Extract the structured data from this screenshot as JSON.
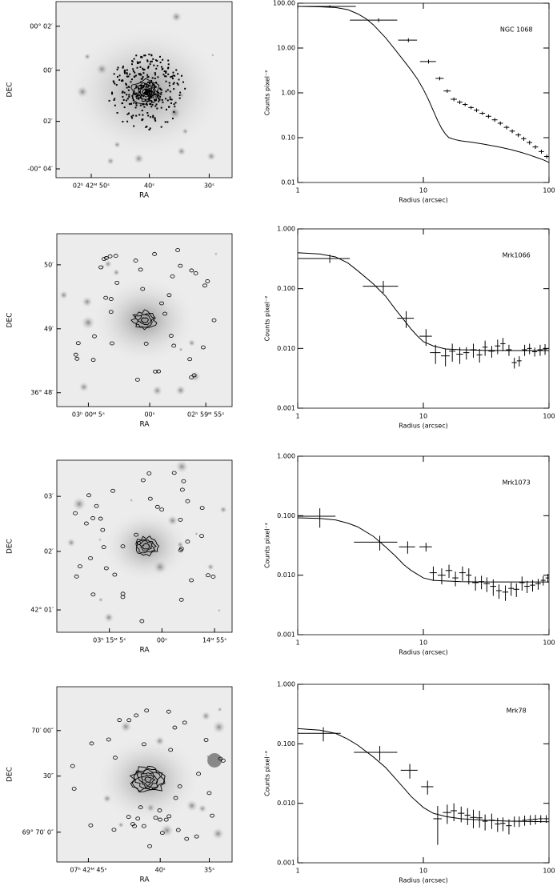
{
  "chart_data": [
    {
      "type": "image",
      "xlabel": "RA",
      "ylabel": "DEC",
      "xtick_labels": [
        "02ʰ 42ᴹ 50ˢ",
        "40ˢ",
        "30ˢ"
      ],
      "ytick_labels": [
        "00° 02′",
        "00′",
        "02′",
        "-00° 04′"
      ]
    },
    {
      "type": "errorbar",
      "annotation": "NGC 1068",
      "xlabel": "Radius (arcsec)",
      "ylabel": "Counts pixel⁻²",
      "xscale": "log",
      "yscale": "log",
      "xlim": [
        1,
        100
      ],
      "ylim": [
        0.01,
        100
      ],
      "xticks": [
        1,
        10,
        100
      ],
      "yticks": [
        0.01,
        {
          "value": 0.1,
          "label": "0.10"
        },
        {
          "value": 1,
          "label": "1.00"
        },
        {
          "value": 10,
          "label": "10.00"
        },
        {
          "value": 100,
          "label": "100.00"
        }
      ],
      "series": [
        {
          "color": "#000000",
          "x": [
            1.8,
            4.4,
            7.6,
            11,
            13.5,
            15.5,
            17.5,
            19.5,
            21.5,
            24,
            26.5,
            29.5,
            33,
            37,
            41,
            46,
            51,
            57,
            63,
            70,
            78,
            87,
            96
          ],
          "values": [
            85,
            42,
            15,
            5.0,
            2.1,
            1.1,
            0.72,
            0.62,
            0.55,
            0.47,
            0.41,
            0.35,
            0.3,
            0.25,
            0.21,
            0.17,
            0.14,
            0.115,
            0.095,
            0.078,
            0.062,
            0.049,
            0.038
          ],
          "xerr": [
            1.1,
            1.8,
            1.3,
            1.6,
            1,
            1,
            1,
            1,
            1,
            1.2,
            1.3,
            1.5,
            1.7,
            1.9,
            2,
            2.3,
            2.5,
            2.8,
            3,
            3.5,
            4,
            4.3,
            4.5
          ],
          "yerr": [
            5,
            4,
            1.5,
            0.5,
            0.2,
            0.1,
            0.07,
            0.06,
            0.05,
            0.04,
            0.04,
            0.03,
            0.03,
            0.025,
            0.02,
            0.017,
            0.014,
            0.012,
            0.01,
            0.008,
            0.006,
            0.005,
            0.004
          ]
        },
        {
          "color": "#000000",
          "x": [
            1,
            1.5,
            2,
            2.5,
            3,
            3.5,
            4,
            5,
            6,
            7,
            8,
            9,
            10,
            11,
            12,
            13,
            14,
            15,
            16,
            18,
            20,
            25,
            30,
            40,
            50,
            60,
            70,
            80,
            90,
            100
          ],
          "values": [
            85,
            83,
            80,
            72,
            58,
            45,
            33,
            17,
            9,
            5.2,
            3.2,
            2.0,
            1.2,
            0.7,
            0.4,
            0.24,
            0.16,
            0.12,
            0.1,
            0.09,
            0.085,
            0.078,
            0.072,
            0.062,
            0.054,
            0.047,
            0.041,
            0.036,
            0.032,
            0.028
          ]
        }
      ]
    },
    {
      "type": "image",
      "xlabel": "RA",
      "ylabel": "DEC",
      "xtick_labels": [
        "03ʰ 00ᴹ 5ˢ",
        "00ˢ",
        "02ʰ 59ᴹ 55ˢ"
      ],
      "ytick_labels": [
        "50′",
        "49′",
        "36° 48′"
      ]
    },
    {
      "type": "errorbar",
      "annotation": "Mrk1066",
      "xlabel": "Radius (arcsec)",
      "ylabel": "Counts pixel⁻²",
      "xscale": "log",
      "yscale": "log",
      "xlim": [
        1,
        100
      ],
      "ylim": [
        0.001,
        1
      ],
      "xticks": [
        1,
        10,
        100
      ],
      "yticks": [
        0.001,
        {
          "value": 0.01,
          "label": "0.010"
        },
        {
          "value": 0.1,
          "label": "0.100"
        },
        {
          "value": 1,
          "label": "1.000"
        }
      ],
      "series": [
        {
          "color": "#000000",
          "x": [
            1.8,
            4.8,
            7.3,
            10.5,
            12.5,
            15,
            17,
            19.5,
            22,
            25,
            28,
            31,
            35,
            39,
            43,
            48,
            53,
            58,
            64,
            70,
            77,
            85,
            93
          ],
          "values": [
            0.32,
            0.11,
            0.032,
            0.016,
            0.0085,
            0.0075,
            0.009,
            0.008,
            0.0085,
            0.0095,
            0.0078,
            0.0105,
            0.009,
            0.011,
            0.012,
            0.0095,
            0.0058,
            0.0062,
            0.0095,
            0.01,
            0.0088,
            0.0095,
            0.0098
          ],
          "xerr": [
            0.8,
            1.5,
            1.1,
            1.2,
            1.2,
            1.2,
            1,
            1.2,
            1.2,
            1.5,
            1.5,
            1.5,
            2,
            2,
            2,
            2.5,
            2.5,
            2.5,
            3,
            3,
            3.5,
            4,
            4
          ],
          "yerr": [
            0.05,
            0.025,
            0.01,
            0.005,
            0.003,
            0.0025,
            0.003,
            0.0025,
            0.002,
            0.0025,
            0.002,
            0.003,
            0.002,
            0.003,
            0.003,
            0.002,
            0.0012,
            0.0012,
            0.002,
            0.002,
            0.0015,
            0.002,
            0.002
          ]
        },
        {
          "color": "#000000",
          "x": [
            1,
            1.5,
            2,
            2.5,
            3,
            4,
            5,
            6,
            7,
            8,
            9,
            10,
            12,
            15,
            20,
            30,
            50,
            100
          ],
          "values": [
            0.4,
            0.38,
            0.34,
            0.27,
            0.2,
            0.12,
            0.075,
            0.045,
            0.03,
            0.021,
            0.016,
            0.013,
            0.011,
            0.0098,
            0.0095,
            0.0093,
            0.0092,
            0.0092
          ]
        }
      ]
    },
    {
      "type": "image",
      "xlabel": "RA",
      "ylabel": "DEC",
      "xtick_labels": [
        "03ʰ 15ᴹ 5ˢ",
        "00ˢ",
        "14ᴹ 55ˢ"
      ],
      "ytick_labels": [
        "03′",
        "02′",
        "42° 01′"
      ]
    },
    {
      "type": "errorbar",
      "annotation": "Mrk1073",
      "xlabel": "Radius (arcsec)",
      "ylabel": "Counts pixel⁻²",
      "xscale": "log",
      "yscale": "log",
      "xlim": [
        1,
        100
      ],
      "ylim": [
        0.001,
        1
      ],
      "xticks": [
        1,
        10,
        100
      ],
      "yticks": [
        0.001,
        {
          "value": 0.01,
          "label": "0.010"
        },
        {
          "value": 0.1,
          "label": "0.100"
        },
        {
          "value": 1,
          "label": "1.000"
        }
      ],
      "series": [
        {
          "color": "#000000",
          "x": [
            1.5,
            4.5,
            7.5,
            10.5,
            12,
            14,
            16,
            18,
            20.5,
            23,
            26,
            29,
            32,
            36,
            40,
            45,
            50,
            55,
            61,
            67,
            74,
            82,
            90,
            98
          ],
          "values": [
            0.098,
            0.036,
            0.03,
            0.03,
            0.011,
            0.01,
            0.012,
            0.009,
            0.011,
            0.01,
            0.0075,
            0.0078,
            0.0072,
            0.0065,
            0.0055,
            0.0052,
            0.006,
            0.0058,
            0.0075,
            0.0065,
            0.0068,
            0.0072,
            0.0082,
            0.009
          ],
          "xerr": [
            0.5,
            1.7,
            1.1,
            1.2,
            0.8,
            1,
            1,
            1,
            1.2,
            1.2,
            1.5,
            1.5,
            1.8,
            2,
            2,
            2.5,
            2.5,
            3,
            3,
            3.5,
            3.5,
            4,
            4,
            4
          ],
          "yerr": [
            0.035,
            0.01,
            0.007,
            0.005,
            0.003,
            0.003,
            0.003,
            0.0025,
            0.003,
            0.003,
            0.002,
            0.002,
            0.002,
            0.002,
            0.0015,
            0.0015,
            0.0015,
            0.0015,
            0.002,
            0.0015,
            0.0015,
            0.0015,
            0.0015,
            0.0015
          ]
        },
        {
          "color": "#000000",
          "x": [
            1,
            1.5,
            2,
            2.5,
            3,
            4,
            5,
            6,
            7,
            8,
            10,
            12,
            15,
            20,
            30,
            50,
            100
          ],
          "values": [
            0.092,
            0.09,
            0.085,
            0.075,
            0.065,
            0.045,
            0.03,
            0.021,
            0.015,
            0.012,
            0.009,
            0.0082,
            0.008,
            0.0078,
            0.0077,
            0.0077,
            0.0077
          ]
        }
      ]
    },
    {
      "type": "image",
      "xlabel": "RA",
      "ylabel": "DEC",
      "xtick_labels": [
        "07ʰ 42ᴹ 45ˢ",
        "40ˢ",
        "35ˢ"
      ],
      "ytick_labels": [
        "70′ 00″",
        "30″",
        "69° 70′ 0″"
      ]
    },
    {
      "type": "errorbar",
      "annotation": "Mrk78",
      "xlabel": "Radius (arcsec)",
      "ylabel": "Counts pixel⁻²",
      "xscale": "log",
      "yscale": "log",
      "xlim": [
        1,
        100
      ],
      "ylim": [
        0.001,
        1
      ],
      "xticks": [
        1,
        10,
        100
      ],
      "yticks": [
        0.001,
        {
          "value": 0.01,
          "label": "0.010"
        },
        {
          "value": 0.1,
          "label": "0.100"
        },
        {
          "value": 1,
          "label": "1.000"
        }
      ],
      "series": [
        {
          "color": "#000000",
          "x": [
            1.6,
            4.5,
            7.8,
            10.8,
            13,
            15.5,
            17.5,
            20,
            22.5,
            25,
            28,
            31,
            35,
            39,
            43,
            48,
            53,
            58,
            64,
            71,
            78,
            86,
            95
          ],
          "values": [
            0.15,
            0.072,
            0.036,
            0.019,
            0.0055,
            0.007,
            0.0075,
            0.0068,
            0.0063,
            0.0058,
            0.0057,
            0.005,
            0.0052,
            0.0045,
            0.0046,
            0.0042,
            0.005,
            0.005,
            0.0052,
            0.0053,
            0.0054,
            0.0055,
            0.0055
          ],
          "xerr": [
            0.6,
            1.7,
            1.2,
            1.2,
            1,
            1.2,
            1,
            1.2,
            1.2,
            1.5,
            1.5,
            1.5,
            2,
            2,
            2,
            2.5,
            2.5,
            2.5,
            3,
            3.5,
            3.5,
            4,
            4.5
          ],
          "yerr": [
            0.04,
            0.02,
            0.01,
            0.005,
            0.0035,
            0.0025,
            0.0025,
            0.002,
            0.002,
            0.002,
            0.0018,
            0.0015,
            0.0015,
            0.0012,
            0.0012,
            0.0012,
            0.001,
            0.001,
            0.001,
            0.001,
            0.001,
            0.0008,
            0.0008
          ]
        },
        {
          "color": "#000000",
          "x": [
            1,
            1.5,
            2,
            2.5,
            3,
            4,
            5,
            6,
            7,
            8,
            10,
            12,
            15,
            20,
            30,
            50,
            100
          ],
          "values": [
            0.18,
            0.17,
            0.15,
            0.12,
            0.095,
            0.06,
            0.04,
            0.026,
            0.018,
            0.013,
            0.0085,
            0.0068,
            0.006,
            0.0055,
            0.0052,
            0.005,
            0.0049
          ]
        }
      ]
    }
  ]
}
